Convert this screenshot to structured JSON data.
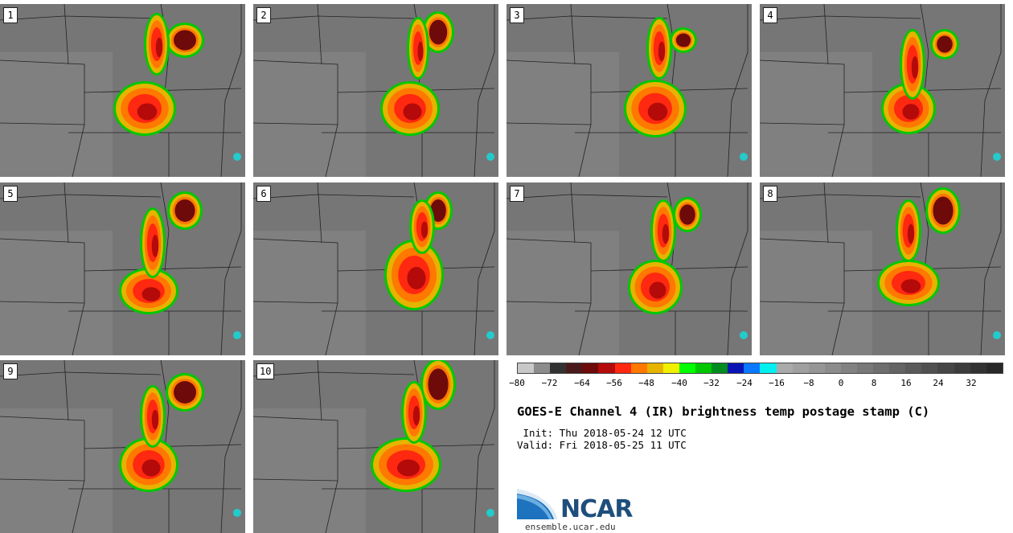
{
  "panels": [
    {
      "label": "1"
    },
    {
      "label": "2"
    },
    {
      "label": "3"
    },
    {
      "label": "4"
    },
    {
      "label": "5"
    },
    {
      "label": "6"
    },
    {
      "label": "7"
    },
    {
      "label": "8"
    },
    {
      "label": "9"
    },
    {
      "label": "10"
    }
  ],
  "colorbar": {
    "colors": [
      "#c8c8c8",
      "#8c8c8c",
      "#323232",
      "#4a1a1a",
      "#6e0a0a",
      "#b40a0a",
      "#ff2810",
      "#ff7800",
      "#e6b400",
      "#f0f000",
      "#00ff00",
      "#00c800",
      "#008c1e",
      "#0a14b4",
      "#0a78ff",
      "#00f0f0",
      "#aaaaaa",
      "#a0a0a0",
      "#969696",
      "#8c8c8c",
      "#828282",
      "#787878",
      "#6e6e6e",
      "#646464",
      "#5a5a5a",
      "#505050",
      "#464646",
      "#3c3c3c",
      "#323232",
      "#282828"
    ],
    "ticks": [
      "−80",
      "−72",
      "−64",
      "−56",
      "−48",
      "−40",
      "−32",
      "−24",
      "−16",
      "−8",
      "0",
      "8",
      "16",
      "24",
      "32"
    ]
  },
  "title": "GOES-E Channel 4 (IR) brightness temp postage stamp (C)",
  "init": " Init: Thu 2018-05-24 12 UTC",
  "valid": "Valid: Fri 2018-05-25 11 UTC",
  "logo": {
    "text": "NCAR",
    "url": "ensemble.ucar.edu"
  }
}
